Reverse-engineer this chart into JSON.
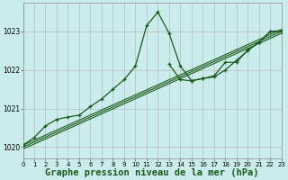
{
  "bg_color": "#cbecec",
  "grid_color": "#b0b0b0",
  "line_color": "#1a5c1a",
  "xlabel": "Graphe pression niveau de la mer (hPa)",
  "xlabel_fontsize": 7.5,
  "xlim": [
    0,
    23
  ],
  "ylim": [
    1019.7,
    1023.75
  ],
  "yticks": [
    1020,
    1021,
    1022,
    1023
  ],
  "xticks": [
    0,
    1,
    2,
    3,
    4,
    5,
    6,
    7,
    8,
    9,
    10,
    11,
    12,
    13,
    14,
    15,
    16,
    17,
    18,
    19,
    20,
    21,
    22,
    23
  ],
  "series": [
    {
      "x": [
        0,
        1,
        2,
        3,
        4,
        5,
        6,
        7,
        8,
        9,
        10,
        11,
        12,
        13,
        14,
        15,
        16,
        17,
        18,
        19,
        20,
        21,
        22,
        23
      ],
      "y": [
        1020.05,
        1020.25,
        1020.55,
        1020.72,
        1020.78,
        1020.83,
        1021.05,
        1021.25,
        1021.5,
        1021.75,
        1022.1,
        1023.15,
        1023.5,
        1022.95,
        1022.1,
        1021.72,
        1021.78,
        1021.82,
        1022.0,
        1022.25,
        1022.5,
        1022.72,
        1023.0,
        1023.0
      ],
      "marker": true,
      "lw": 0.9
    },
    {
      "x": [
        0,
        23
      ],
      "y": [
        1020.0,
        1023.0
      ],
      "marker": false,
      "lw": 0.8
    },
    {
      "x": [
        0,
        23
      ],
      "y": [
        1020.05,
        1023.05
      ],
      "marker": false,
      "lw": 0.8
    },
    {
      "x": [
        0,
        23
      ],
      "y": [
        1019.95,
        1022.95
      ],
      "marker": false,
      "lw": 0.8
    },
    {
      "x": [
        13,
        14,
        15,
        16,
        17,
        18,
        19,
        20,
        21,
        22,
        23
      ],
      "y": [
        1022.15,
        1021.75,
        1021.72,
        1021.78,
        1021.85,
        1022.2,
        1022.2,
        1022.52,
        1022.72,
        1023.0,
        1023.02
      ],
      "marker": true,
      "lw": 0.9
    }
  ]
}
